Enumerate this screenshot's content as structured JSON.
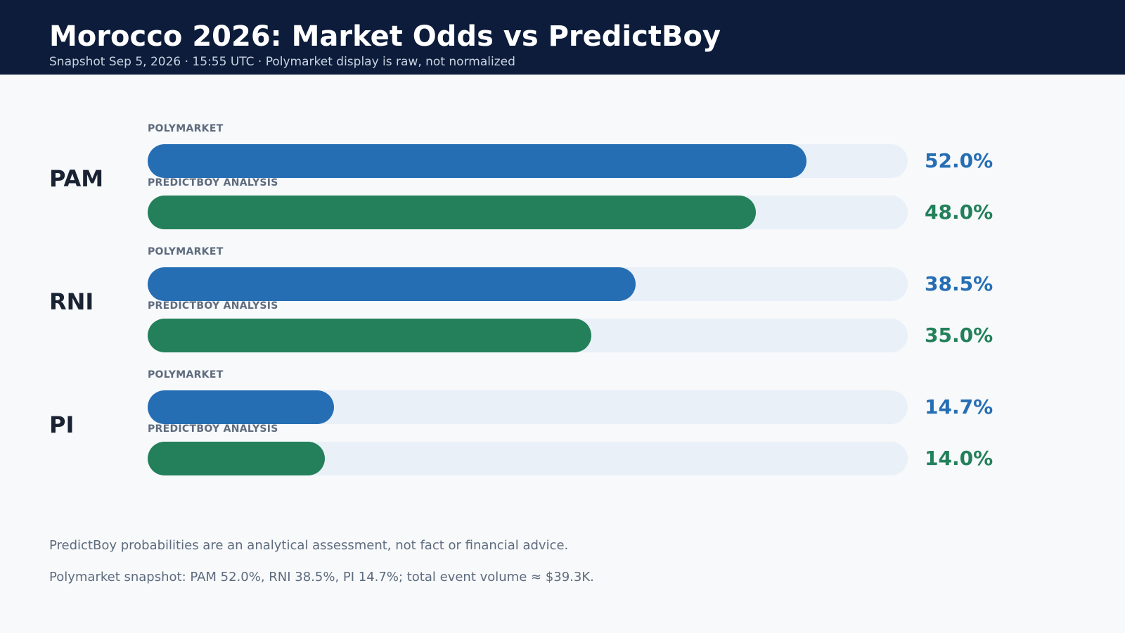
{
  "header": {
    "title": "Morocco 2026: Market Odds vs PredictBoy",
    "subtitle": "Snapshot Sep 5, 2026 · 15:55 UTC · Polymarket display is raw, not normalized"
  },
  "chart_data": {
    "type": "bar",
    "title": "Morocco 2026: Market Odds vs PredictBoy",
    "categories": [
      "PAM",
      "RNI",
      "PI"
    ],
    "series": [
      {
        "name": "POLYMARKET",
        "values": [
          52.0,
          38.5,
          14.7
        ],
        "labels": [
          "52.0%",
          "38.5%",
          "14.7%"
        ],
        "color": "#266eb4"
      },
      {
        "name": "PREDICTBOY ANALYSIS",
        "values": [
          48.0,
          35.0,
          14.0
        ],
        "labels": [
          "48.0%",
          "35.0%",
          "14.0%"
        ],
        "color": "#23805a"
      }
    ],
    "scale_max": 60,
    "unit": "%",
    "orientation": "horizontal"
  },
  "colors": {
    "header_bg": "#0c1c3a",
    "polymarket": "#266eb4",
    "predictboy": "#23805a",
    "track": "#eaf0f7"
  },
  "footer": {
    "disclaimer": "PredictBoy probabilities are an analytical assessment, not fact or financial advice.",
    "snapshot_note": "Polymarket snapshot: PAM 52.0%, RNI 38.5%, PI 14.7%; total event volume ≈ $39.3K."
  }
}
